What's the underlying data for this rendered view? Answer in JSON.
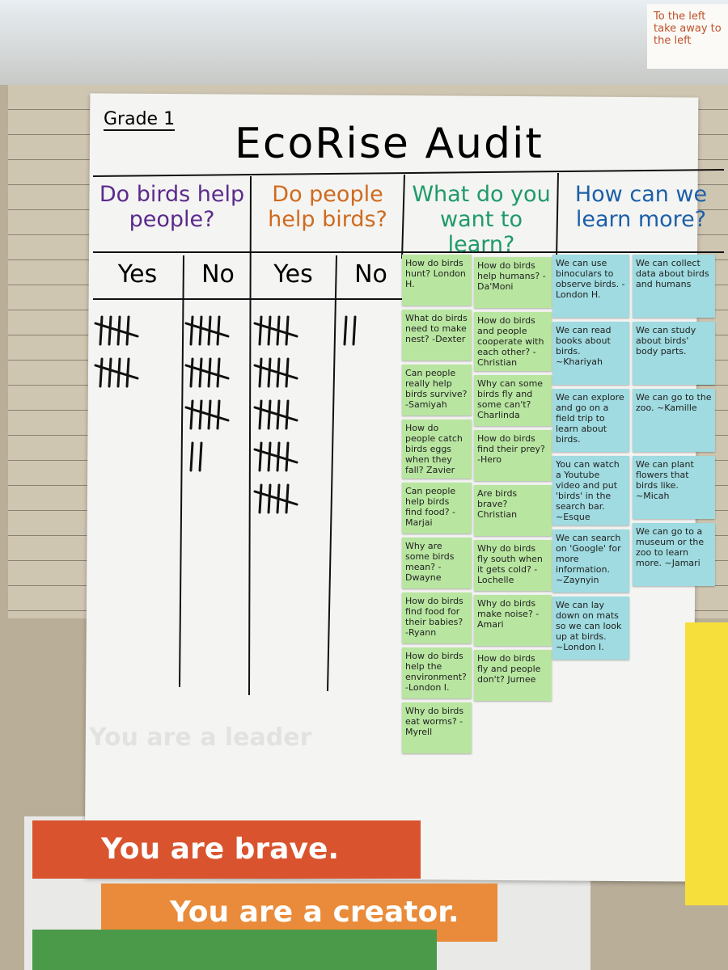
{
  "header": {
    "grade": "Grade 1",
    "title": "EcoRise Audit"
  },
  "survey": [
    {
      "question": "Do birds help people?",
      "color": "#5b2a8c",
      "answers": [
        {
          "label": "Yes",
          "tally": 10
        },
        {
          "label": "No",
          "tally": 17
        }
      ]
    },
    {
      "question": "Do people help birds?",
      "color": "#d06a1e",
      "answers": [
        {
          "label": "Yes",
          "tally": 25
        },
        {
          "label": "No",
          "tally": 2
        }
      ]
    }
  ],
  "learn": {
    "question": "What do you want to learn?",
    "color": "#1f9a6a",
    "note_color": "#b8e6a0",
    "columns": [
      [
        "How do birds hunt? London H.",
        "What do birds need to make nest? -Dexter",
        "Can people really help birds survive? -Samiyah",
        "How do people catch birds eggs when they fall? Zavier",
        "Can people help birds find food? -Marjai",
        "Why are some birds mean? -Dwayne",
        "How do birds find food for their babies? -Ryann",
        "How do birds help the environment? -London I.",
        "Why do birds eat worms? -Myrell"
      ],
      [
        "How do birds help humans? -Da'Moni",
        "How do birds and people cooperate with each other? -Christian",
        "Why can some birds fly and some can't? Charlinda",
        "How do birds find their prey? -Hero",
        "Are birds brave? Christian",
        "Why do birds fly south when it gets cold? -Lochelle",
        "Why do birds make noise? -Amari",
        "How do birds fly and people don't? Jurnee"
      ]
    ]
  },
  "more": {
    "question": "How can we learn more?",
    "color": "#1c5fa8",
    "note_color": "#9fdbe0",
    "columns": [
      [
        "We can use binoculars to observe birds. -London H.",
        "We can read books about birds. ~Khariyah",
        "We can explore and go on a field trip to learn about birds.",
        "You can watch a Youtube video and put 'birds' in the search bar. ~Esque",
        "We can search on 'Google' for more information. ~Zaynyin",
        "We can lay down on mats so we can look up at birds. ~London I."
      ],
      [
        "We can collect data about birds and humans",
        "We can study about birds' body parts.",
        "We can go to the zoo. ~Kamille",
        "We can plant flowers that birds like. ~Micah",
        "We can go to a museum or the zoo to learn more. ~Jamari"
      ]
    ]
  },
  "banners": [
    "You are a leader",
    "You are brave.",
    "You are a creator."
  ],
  "side_note": "To the left take away to the left"
}
